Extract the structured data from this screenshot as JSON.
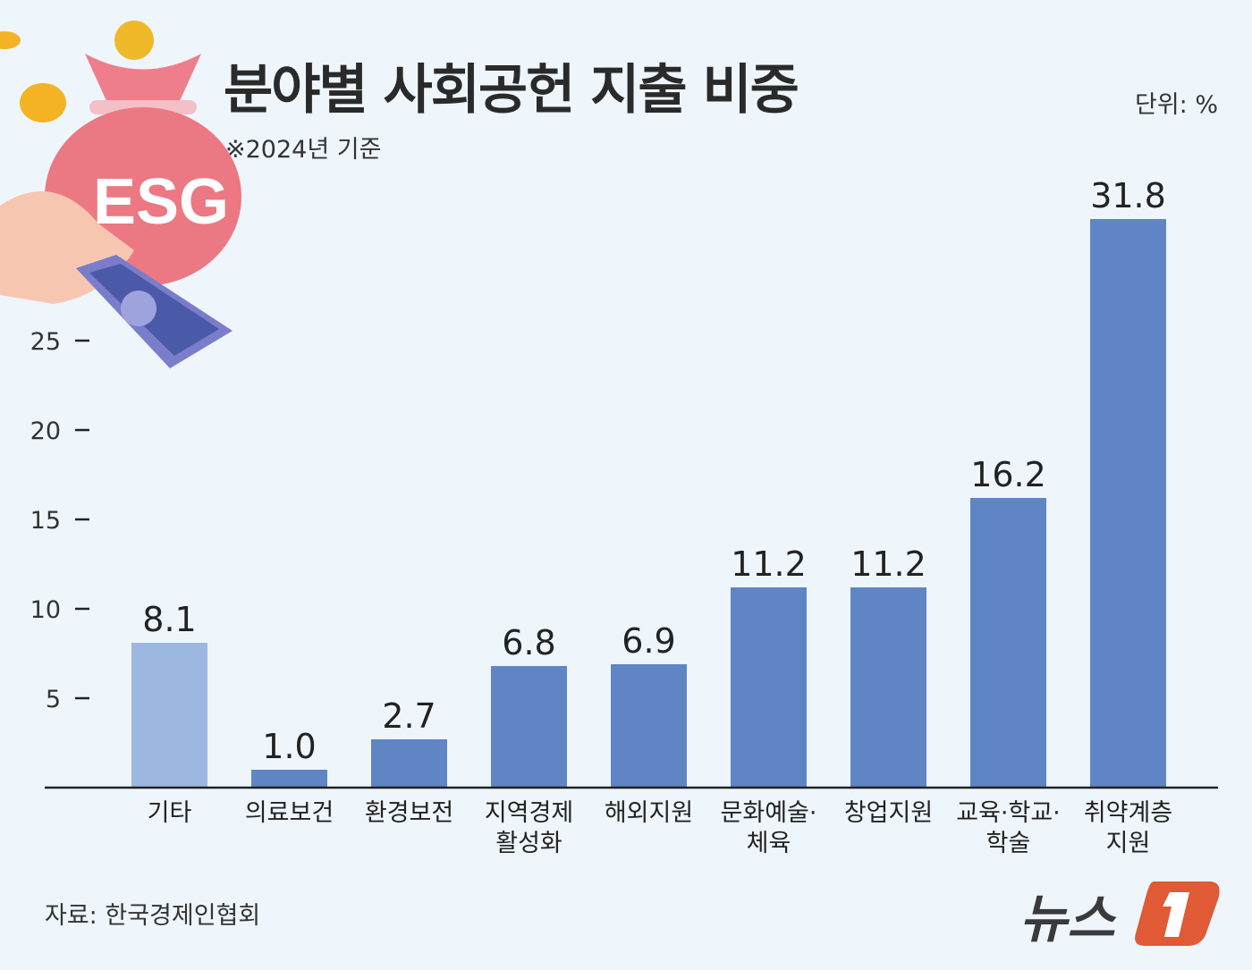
{
  "header": {
    "title": "분야별 사회공헌 지출 비중",
    "subtitle": "※2024년 기준",
    "unit": "단위: %"
  },
  "footer": {
    "source": "자료: 한국경제인협회",
    "logo_text": "뉴스1"
  },
  "illustration": {
    "label": "ESG"
  },
  "colors": {
    "bar": "#5f85c4",
    "bar_highlight": "#9cb8e0",
    "background": "#eef6fc",
    "logo_accent": "#e05a35"
  },
  "chart_data": {
    "type": "bar",
    "categories": [
      "기타",
      "의료보건",
      "환경보전",
      "지역경제 활성화",
      "해외지원",
      "문화예술· 체육",
      "창업지원",
      "교육·학교· 학술",
      "취약계층 지원"
    ],
    "category_lines": [
      [
        "기타"
      ],
      [
        "의료보건"
      ],
      [
        "환경보전"
      ],
      [
        "지역경제",
        "활성화"
      ],
      [
        "해외지원"
      ],
      [
        "문화예술·",
        "체육"
      ],
      [
        "창업지원"
      ],
      [
        "교육·학교·",
        "학술"
      ],
      [
        "취약계층",
        "지원"
      ]
    ],
    "values": [
      8.1,
      1.0,
      2.7,
      6.8,
      6.9,
      11.2,
      11.2,
      16.2,
      31.8
    ],
    "value_labels": [
      "8.1",
      "1.0",
      "2.7",
      "6.8",
      "6.9",
      "11.2",
      "11.2",
      "16.2",
      "31.8"
    ],
    "yticks": [
      5,
      10,
      15,
      20,
      25
    ],
    "ylim": [
      0,
      32
    ],
    "title": "분야별 사회공헌 지출 비중",
    "xlabel": "",
    "ylabel": "",
    "grid": false
  }
}
